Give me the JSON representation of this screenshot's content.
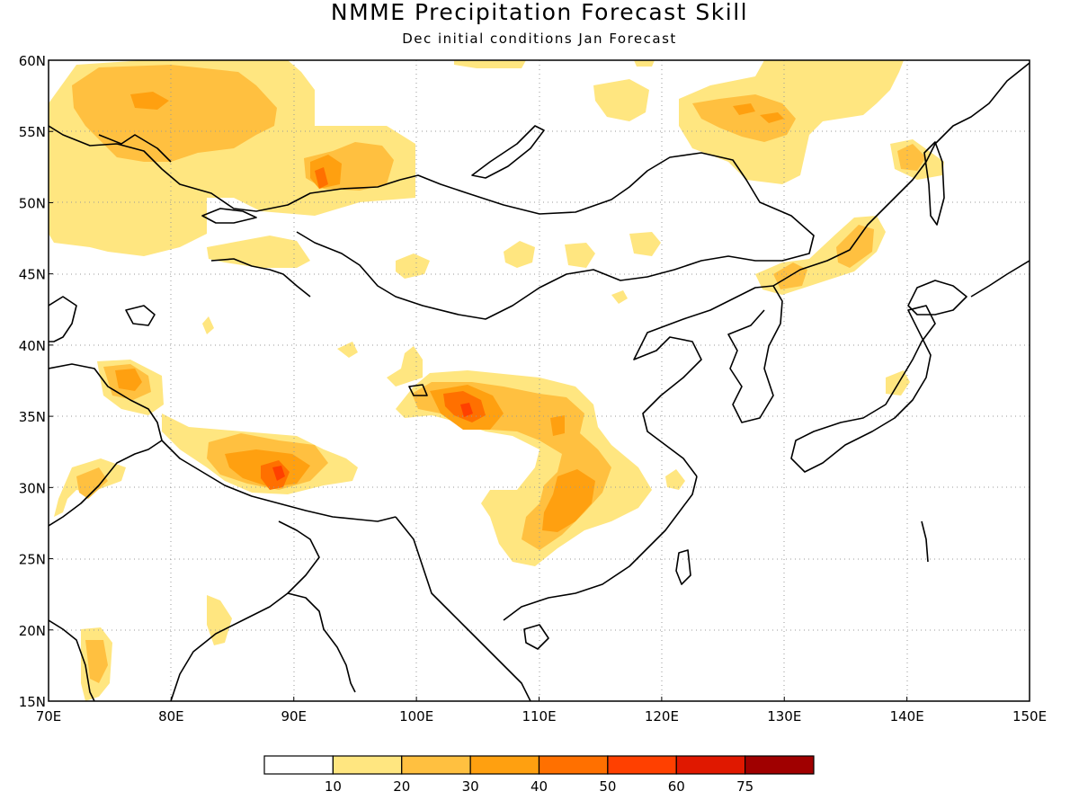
{
  "title": "NMME Precipitation Forecast Skill",
  "subtitle": "Dec initial conditions  Jan Forecast",
  "map": {
    "lon_range": [
      70,
      150
    ],
    "lat_range": [
      15,
      60
    ],
    "lon_ticks": [
      "70E",
      "80E",
      "90E",
      "100E",
      "110E",
      "120E",
      "130E",
      "140E",
      "150E"
    ],
    "lat_ticks": [
      "15N",
      "20N",
      "25N",
      "30N",
      "35N",
      "40N",
      "45N",
      "50N",
      "55N",
      "60N"
    ],
    "grid": "dotted"
  },
  "colorbar": {
    "labels": [
      "10",
      "20",
      "30",
      "40",
      "50",
      "60",
      "75"
    ],
    "colors": [
      "#ffffff",
      "#ffe680",
      "#ffc040",
      "#ffa010",
      "#ff7000",
      "#ff4000",
      "#e01800",
      "#a00000"
    ]
  }
}
